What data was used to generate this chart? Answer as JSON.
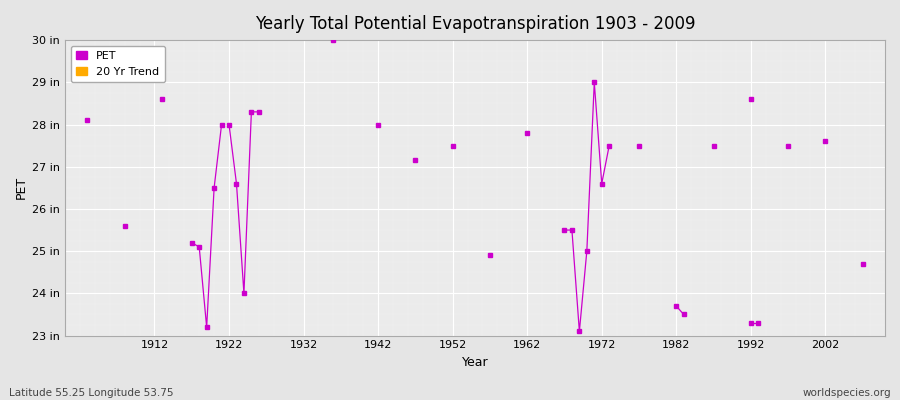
{
  "title": "Yearly Total Potential Evapotranspiration 1903 - 2009",
  "xlabel": "Year",
  "ylabel": "PET",
  "footer_left": "Latitude 55.25 Longitude 53.75",
  "footer_right": "worldspecies.org",
  "ylim": [
    23,
    30
  ],
  "yticks": [
    23,
    24,
    25,
    26,
    27,
    28,
    29,
    30
  ],
  "ytick_labels": [
    "23 in",
    "24 in",
    "25 in",
    "26 in",
    "27 in",
    "28 in",
    "29 in",
    "30 in"
  ],
  "xlim": [
    1900,
    2010
  ],
  "xticks": [
    1912,
    1922,
    1932,
    1942,
    1952,
    1962,
    1972,
    1982,
    1992,
    2002
  ],
  "background_color": "#e5e5e5",
  "plot_background": "#ebebeb",
  "grid_color": "#ffffff",
  "pet_color": "#cc00cc",
  "trend_color": "#ffaa00",
  "pet_marker": "s",
  "pet_markersize": 3,
  "isolated_points": [
    [
      1903,
      28.1
    ],
    [
      1908,
      25.6
    ],
    [
      1913,
      28.6
    ],
    [
      1936,
      30.0
    ],
    [
      1942,
      28.0
    ],
    [
      1947,
      27.15
    ],
    [
      1952,
      27.5
    ],
    [
      1957,
      24.9
    ],
    [
      1962,
      27.8
    ],
    [
      1977,
      27.5
    ],
    [
      1987,
      27.5
    ],
    [
      1992,
      28.6
    ],
    [
      1997,
      27.5
    ],
    [
      2002,
      27.6
    ],
    [
      2007,
      24.7
    ]
  ],
  "line_groups": [
    {
      "years": [
        1917,
        1918,
        1919,
        1920,
        1921
      ],
      "values": [
        25.2,
        25.1,
        23.2,
        26.5,
        28.0
      ]
    },
    {
      "years": [
        1922,
        1923,
        1924,
        1925,
        1926
      ],
      "values": [
        28.0,
        26.6,
        24.0,
        28.3,
        28.3
      ]
    },
    {
      "years": [
        1967,
        1968,
        1969,
        1970,
        1971,
        1972,
        1973
      ],
      "values": [
        25.5,
        25.5,
        23.1,
        25.0,
        29.0,
        26.6,
        27.5
      ]
    },
    {
      "years": [
        1982,
        1983
      ],
      "values": [
        23.7,
        23.5
      ]
    },
    {
      "years": [
        1992,
        1993
      ],
      "values": [
        23.3,
        23.3
      ]
    }
  ]
}
